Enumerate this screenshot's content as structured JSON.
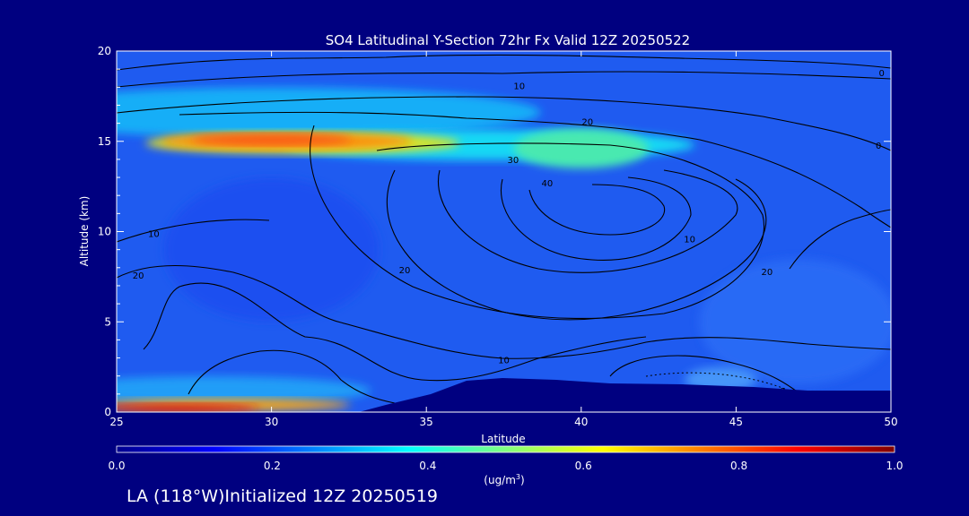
{
  "chart_data": {
    "type": "heatmap",
    "title": "SO4 Latitudinal Y-Section 72hr  Fx Valid 12Z 20250522",
    "xlabel": "Latitude",
    "ylabel": "Altitude (km)",
    "xlim": [
      25,
      50
    ],
    "ylim": [
      0,
      20
    ],
    "x_ticks": [
      25,
      30,
      35,
      40,
      45,
      50
    ],
    "y_ticks": [
      0,
      5,
      10,
      15,
      20
    ],
    "x_tick_labels": [
      "25",
      "30",
      "35",
      "40",
      "45",
      "50"
    ],
    "y_tick_labels": [
      "0",
      "5",
      "10",
      "15",
      "20"
    ],
    "colorbar": {
      "min": 0.0,
      "max": 1.0,
      "tick_labels": [
        "0.0",
        "0.2",
        "0.4",
        "0.6",
        "0.8",
        "1.0"
      ],
      "unit_label": "(ug/m",
      "unit_sup": "3",
      "unit_end": ")",
      "colormap": "jet"
    },
    "grid": false,
    "contour_label_values": [
      "0",
      "10",
      "20",
      "30",
      "40"
    ],
    "features": {
      "upper_layer_core": {
        "lat_range": [
          25,
          37
        ],
        "alt_km": 15.0,
        "value": 0.85
      },
      "surface_layer": {
        "lat_range": [
          25,
          32
        ],
        "alt_km": 0.3,
        "value": 1.0
      },
      "jet_contour_max": {
        "lat": 40.5,
        "alt_km": 11.5,
        "value": 40
      }
    }
  },
  "footer": {
    "text": "LA (118°W)Initialized 12Z 20250519"
  }
}
